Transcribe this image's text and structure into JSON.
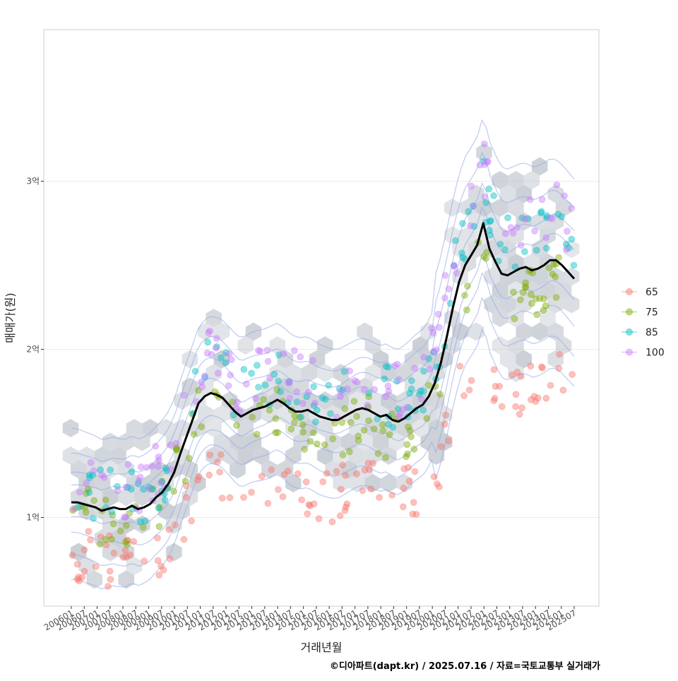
{
  "chart_data": {
    "type": "scatter",
    "title": "",
    "xlabel": "거래년월",
    "ylabel": "매매가(원)",
    "caption": "©디아파트(dapt.kr) / 2025.07.16 / 자료=국토교통부 실거래가",
    "ylim": [
      0.5,
      3.9
    ],
    "y_ticks": [
      {
        "value": 1,
        "label": "1억"
      },
      {
        "value": 2,
        "label": "2억"
      },
      {
        "value": 3,
        "label": "3억"
      }
    ],
    "x_tick_labels": [
      "200601",
      "200607",
      "200701",
      "200707",
      "200801",
      "200807",
      "200901",
      "200907",
      "201001",
      "201007",
      "201101",
      "201107",
      "201201",
      "201207",
      "201301",
      "201307",
      "201401",
      "201407",
      "201501",
      "201507",
      "201601",
      "201607",
      "201701",
      "201707",
      "201801",
      "201807",
      "201901",
      "201907",
      "202001",
      "202007",
      "202101",
      "202107",
      "202201",
      "202207",
      "202301",
      "202307",
      "202401",
      "202407",
      "202501",
      "202507"
    ],
    "legend": {
      "position": "right",
      "entries": [
        {
          "label": "65",
          "color": "#F8766D"
        },
        {
          "label": "75",
          "color": "#7CAE00"
        },
        {
          "label": "85",
          "color": "#00BFC4"
        },
        {
          "label": "100",
          "color": "#C77CFF"
        }
      ]
    },
    "trend_line": {
      "name": "moving-average",
      "color": "#000000",
      "points": [
        [
          0,
          1.09
        ],
        [
          1,
          1.09
        ],
        [
          2,
          1.08
        ],
        [
          3,
          1.07
        ],
        [
          4,
          1.06
        ],
        [
          5,
          1.04
        ],
        [
          6,
          1.05
        ],
        [
          7,
          1.06
        ],
        [
          8,
          1.05
        ],
        [
          9,
          1.05
        ],
        [
          10,
          1.07
        ],
        [
          11,
          1.05
        ],
        [
          12,
          1.06
        ],
        [
          13,
          1.08
        ],
        [
          14,
          1.12
        ],
        [
          15,
          1.15
        ],
        [
          16,
          1.2
        ],
        [
          17,
          1.27
        ],
        [
          18,
          1.38
        ],
        [
          19,
          1.48
        ],
        [
          20,
          1.58
        ],
        [
          21,
          1.68
        ],
        [
          22,
          1.72
        ],
        [
          23,
          1.74
        ],
        [
          24,
          1.73
        ],
        [
          25,
          1.71
        ],
        [
          26,
          1.67
        ],
        [
          27,
          1.63
        ],
        [
          28,
          1.6
        ],
        [
          29,
          1.62
        ],
        [
          30,
          1.64
        ],
        [
          31,
          1.65
        ],
        [
          32,
          1.66
        ],
        [
          33,
          1.68
        ],
        [
          34,
          1.7
        ],
        [
          35,
          1.68
        ],
        [
          36,
          1.65
        ],
        [
          37,
          1.63
        ],
        [
          38,
          1.63
        ],
        [
          39,
          1.64
        ],
        [
          40,
          1.62
        ],
        [
          41,
          1.6
        ],
        [
          42,
          1.59
        ],
        [
          43,
          1.58
        ],
        [
          44,
          1.58
        ],
        [
          45,
          1.6
        ],
        [
          46,
          1.62
        ],
        [
          47,
          1.64
        ],
        [
          48,
          1.65
        ],
        [
          49,
          1.64
        ],
        [
          50,
          1.62
        ],
        [
          51,
          1.6
        ],
        [
          52,
          1.61
        ],
        [
          53,
          1.58
        ],
        [
          54,
          1.57
        ],
        [
          55,
          1.59
        ],
        [
          56,
          1.62
        ],
        [
          57,
          1.65
        ],
        [
          58,
          1.67
        ],
        [
          59,
          1.72
        ],
        [
          60,
          1.8
        ],
        [
          61,
          1.92
        ],
        [
          62,
          2.08
        ],
        [
          63,
          2.25
        ],
        [
          64,
          2.4
        ],
        [
          65,
          2.5
        ],
        [
          66,
          2.56
        ],
        [
          67,
          2.62
        ],
        [
          68,
          2.75
        ],
        [
          69,
          2.6
        ],
        [
          70,
          2.52
        ],
        [
          71,
          2.45
        ],
        [
          72,
          2.44
        ],
        [
          73,
          2.46
        ],
        [
          74,
          2.48
        ],
        [
          75,
          2.49
        ],
        [
          76,
          2.47
        ],
        [
          77,
          2.48
        ],
        [
          78,
          2.5
        ],
        [
          79,
          2.53
        ],
        [
          80,
          2.53
        ],
        [
          81,
          2.5
        ],
        [
          82,
          2.46
        ],
        [
          83,
          2.42
        ]
      ]
    }
  }
}
